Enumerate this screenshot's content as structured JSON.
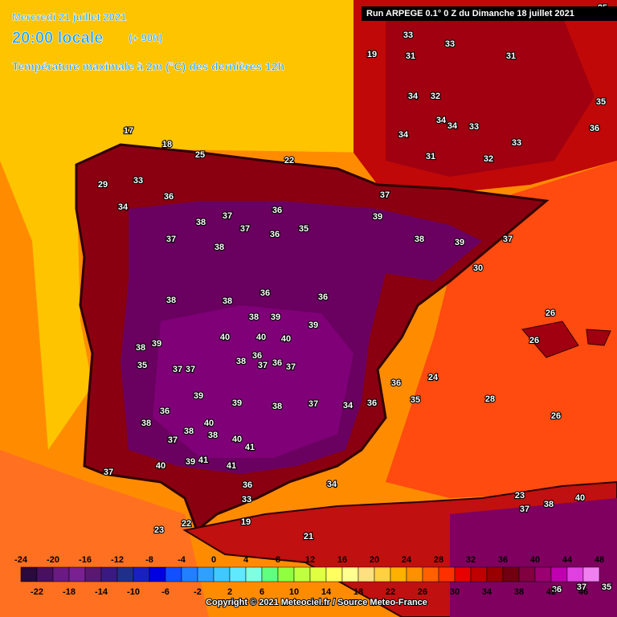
{
  "header": {
    "date": "Mercredi 21 juillet 2021",
    "time": "20:00 locale",
    "lead": "(+ 90h)",
    "parameter": "Température maximale à 2m (°C) des dernières 12h",
    "run": "Run ARPEGE 0.1° 0 Z du Dimanche 18 juillet 2021"
  },
  "map_labels": [
    33,
    31,
    33,
    34,
    32,
    34,
    34,
    33,
    34,
    31,
    32,
    33,
    35,
    36,
    31,
    29,
    33,
    34,
    36,
    37,
    38,
    37,
    36,
    38,
    37,
    36,
    35,
    39,
    37,
    38,
    39,
    37,
    30,
    36,
    38,
    38,
    36,
    39,
    38,
    39,
    40,
    40,
    40,
    38,
    39,
    37,
    37,
    38,
    36,
    37,
    36,
    37,
    35,
    39,
    39,
    38,
    37,
    34,
    36,
    35,
    36,
    24,
    38,
    36,
    37,
    38,
    38,
    40,
    40,
    41,
    41,
    41,
    39,
    40,
    37,
    36,
    33,
    34,
    26,
    26,
    26,
    28,
    23,
    37,
    38,
    40,
    23,
    22,
    19,
    21,
    36,
    37,
    35,
    25,
    18,
    17,
    19,
    25,
    22
  ],
  "scale": {
    "ticks_top": [
      -24,
      -20,
      -16,
      -12,
      -8,
      -4,
      0,
      4,
      8,
      12,
      16,
      20,
      24,
      28,
      32,
      36,
      40,
      44,
      48
    ],
    "ticks_bottom": [
      -22,
      -18,
      -14,
      -10,
      -6,
      -2,
      2,
      6,
      10,
      14,
      18,
      22,
      26,
      30,
      34,
      38,
      42,
      46
    ],
    "colors": [
      "#2a0a3a",
      "#4a1060",
      "#6a1a80",
      "#7a2090",
      "#5a1870",
      "#3a1a80",
      "#20308a",
      "#1a20c0",
      "#0000e0",
      "#1050ff",
      "#2080ff",
      "#30a0ff",
      "#40c8ff",
      "#60e8ff",
      "#80ffe0",
      "#60ff80",
      "#90ff40",
      "#c0ff40",
      "#e0ff40",
      "#ffff60",
      "#ffff90",
      "#ffe080",
      "#ffd040",
      "#ffb000",
      "#ff9000",
      "#ff6000",
      "#ff3000",
      "#e80000",
      "#c00000",
      "#980000",
      "#700010",
      "#800040",
      "#9a0070",
      "#c000b0",
      "#e040e0",
      "#f080f0"
    ]
  },
  "footer": "Copyright © 2021 Meteociel.fr / Source Meteo-France"
}
